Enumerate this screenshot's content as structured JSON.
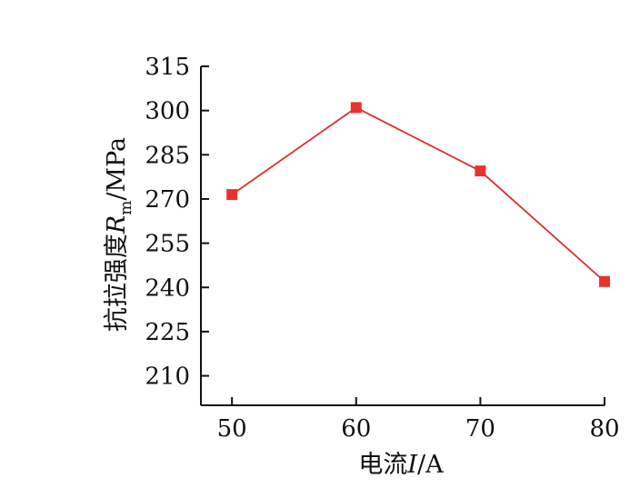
{
  "chart_data": {
    "type": "line",
    "title": "",
    "x": [
      50,
      60,
      70,
      80
    ],
    "series": [
      {
        "values": [
          271.5,
          301,
          279.5,
          242
        ]
      }
    ],
    "xlim": [
      47.5,
      80
    ],
    "ylim": [
      200,
      315
    ],
    "xticks": [
      "50",
      "60",
      "70",
      "80"
    ],
    "yticks": [
      "210",
      "225",
      "240",
      "255",
      "270",
      "285",
      "300",
      "315"
    ],
    "xlabel": {
      "prefix": "电流",
      "var": "I",
      "unit": "/A"
    },
    "ylabel": {
      "prefix": "抗拉强度",
      "var": "R",
      "sub": "m",
      "unit": "/MPa"
    },
    "grid": false,
    "legend": "none",
    "colors": {
      "line": "#d9302c",
      "marker": "#e8322d",
      "axis": "#111111"
    }
  }
}
